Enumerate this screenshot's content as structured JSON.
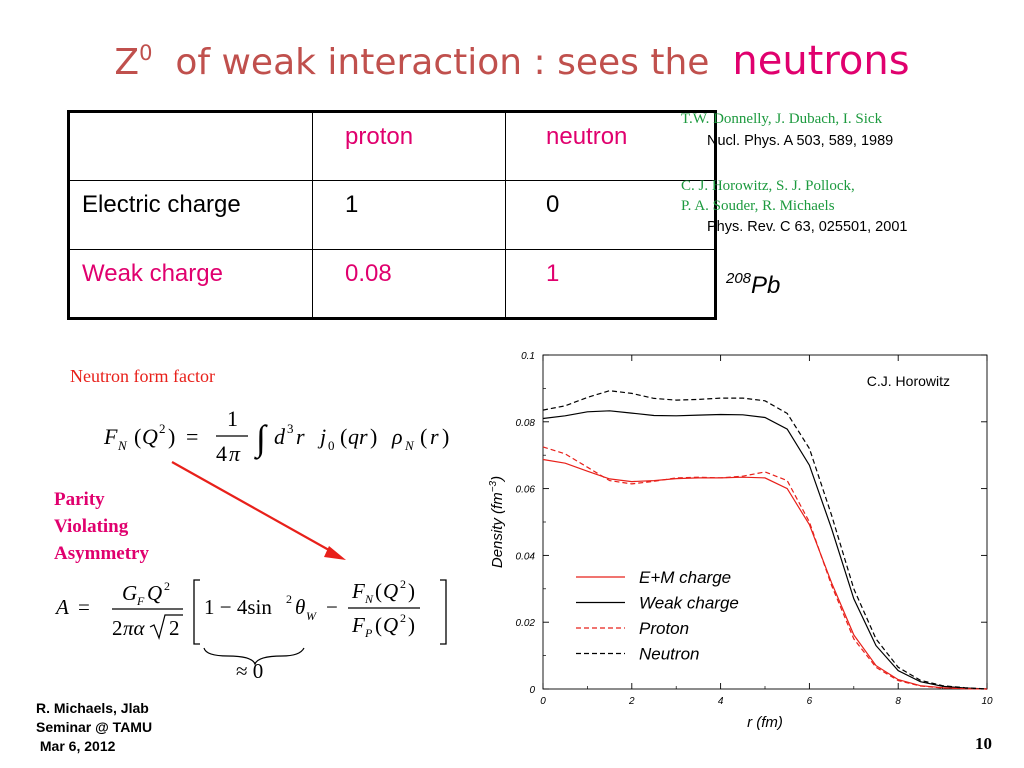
{
  "title": {
    "z_base": "Z",
    "z_sup": "0",
    "text": "of  weak  interaction :  sees  the",
    "highlight": "neutrons"
  },
  "table": {
    "header": [
      "",
      "proton",
      "neutron"
    ],
    "rows": [
      {
        "label": "Electric charge",
        "proton": "1",
        "neutron": "0"
      },
      {
        "label": "Weak charge",
        "proton": "0.08",
        "neutron": "1"
      }
    ]
  },
  "references": {
    "ref1_authors": "T.W. Donnelly,   J.  Dubach,   I.  Sick",
    "ref1_journal": "Nucl.  Phys.  A 503, 589,  1989",
    "ref2_authors_line1": "C. J.  Horowitz,  S. J.  Pollock,",
    "ref2_authors_line2": "P. A.  Souder,  R.  Michaels",
    "ref2_journal": "Phys. Rev. C 63, 025501, 2001"
  },
  "nucleus": {
    "mass_number": "208",
    "symbol": "Pb"
  },
  "formulas": {
    "form_factor_label": "Neutron  form  factor",
    "pva_line1": "Parity",
    "pva_line2": "Violating",
    "pva_line3": "Asymmetry",
    "approx_zero": "≈ 0"
  },
  "footer": {
    "line1": "R. Michaels,  Jlab",
    "line2": "Seminar @ TAMU",
    "line3": " Mar 6, 2012",
    "page_number": "10"
  },
  "colors": {
    "title": "#c0504d",
    "highlight": "#e0006e",
    "reference": "#1d9a3f",
    "em_charge": "#e8201a",
    "weak_charge": "#000000"
  },
  "chart_data": {
    "type": "line",
    "annotation": "C.J. Horowitz",
    "xlabel": "r (fm)",
    "ylabel": "Density (fm^-3)",
    "xlim": [
      0,
      10
    ],
    "ylim": [
      0,
      0.1
    ],
    "xticks": [
      "0",
      "2",
      "4",
      "6",
      "8",
      "10"
    ],
    "yticks": [
      "0",
      "0.02",
      "0.04",
      "0.06",
      "0.08",
      "0.1"
    ],
    "legend_position": "bottom-left",
    "series": [
      {
        "name": "E+M charge",
        "color": "#e8201a",
        "dash": false,
        "x": [
          0,
          0.5,
          1,
          1.5,
          2,
          2.5,
          3,
          3.5,
          4,
          4.5,
          5,
          5.5,
          6,
          6.5,
          7,
          7.5,
          8,
          8.5,
          9,
          9.5,
          10
        ],
        "y": [
          0.0687,
          0.0676,
          0.0652,
          0.0629,
          0.0621,
          0.0624,
          0.063,
          0.0632,
          0.0632,
          0.0634,
          0.0632,
          0.06,
          0.0492,
          0.0318,
          0.0162,
          0.007,
          0.0028,
          0.001,
          0.0004,
          0.0001,
          0.0
        ]
      },
      {
        "name": "Weak charge",
        "color": "#000000",
        "dash": false,
        "x": [
          0,
          0.5,
          1,
          1.5,
          2,
          2.5,
          3,
          3.5,
          4,
          4.5,
          5,
          5.5,
          6,
          6.5,
          7,
          7.5,
          8,
          8.5,
          9,
          9.5,
          10
        ],
        "y": [
          0.081,
          0.0818,
          0.083,
          0.0833,
          0.0826,
          0.0819,
          0.0818,
          0.082,
          0.0822,
          0.0821,
          0.0813,
          0.0778,
          0.067,
          0.048,
          0.027,
          0.013,
          0.0055,
          0.0022,
          0.0008,
          0.0003,
          0.0
        ]
      },
      {
        "name": "Proton",
        "color": "#e8201a",
        "dash": true,
        "x": [
          0,
          0.5,
          1,
          1.5,
          2,
          2.5,
          3,
          3.5,
          4,
          4.5,
          5,
          5.5,
          6,
          6.5,
          7,
          7.5,
          8,
          8.5,
          9,
          9.5,
          10
        ],
        "y": [
          0.0725,
          0.0704,
          0.0664,
          0.0624,
          0.0614,
          0.0622,
          0.0632,
          0.0634,
          0.0632,
          0.0637,
          0.065,
          0.0624,
          0.05,
          0.031,
          0.015,
          0.0065,
          0.0025,
          0.0009,
          0.0003,
          0.0001,
          0.0
        ]
      },
      {
        "name": "Neutron",
        "color": "#000000",
        "dash": true,
        "x": [
          0,
          0.5,
          1,
          1.5,
          2,
          2.5,
          3,
          3.5,
          4,
          4.5,
          5,
          5.5,
          6,
          6.5,
          7,
          7.5,
          8,
          8.5,
          9,
          9.5,
          10
        ],
        "y": [
          0.0835,
          0.0848,
          0.0873,
          0.0893,
          0.0885,
          0.087,
          0.0865,
          0.0867,
          0.0871,
          0.0871,
          0.0863,
          0.0825,
          0.072,
          0.052,
          0.03,
          0.015,
          0.0065,
          0.0026,
          0.001,
          0.0004,
          0.0
        ]
      }
    ]
  }
}
